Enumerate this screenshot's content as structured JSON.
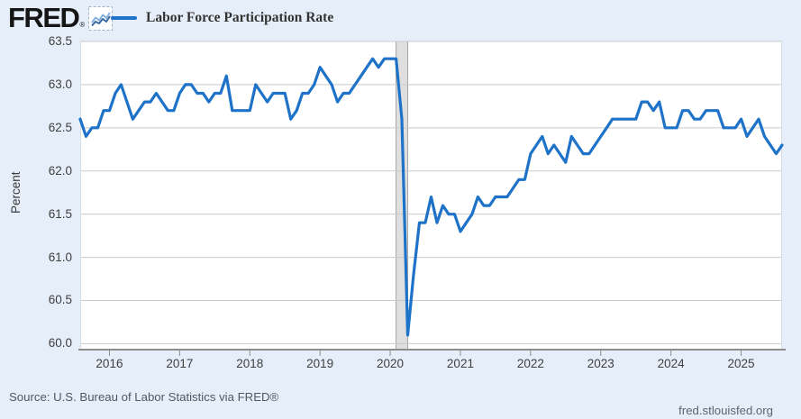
{
  "header": {
    "logo_text": "FRED",
    "logo_registered_mark": "®",
    "legend": {
      "series_label": "Labor Force Participation Rate"
    }
  },
  "chart_data": {
    "type": "line",
    "title": "Labor Force Participation Rate",
    "ylabel": "Percent",
    "frequency": "monthly",
    "x_start": "2015-08",
    "x_end": "2025-08",
    "ylim": [
      60.0,
      63.5
    ],
    "y_ticks": [
      63.5,
      63.0,
      62.5,
      62.0,
      61.5,
      61.0,
      60.5,
      60.0
    ],
    "x_tick_years": [
      "2016",
      "2017",
      "2018",
      "2019",
      "2020",
      "2021",
      "2022",
      "2023",
      "2024",
      "2025"
    ],
    "grid": true,
    "legend_position": "top-left",
    "line_color": "#1e73c8",
    "recession_band": {
      "from": "2020-02",
      "to": "2020-04",
      "fill": "#dfdfdf",
      "edge": "#a6a6a6"
    },
    "series": [
      {
        "name": "Labor Force Participation Rate",
        "units": "Percent",
        "values": [
          62.6,
          62.4,
          62.5,
          62.5,
          62.7,
          62.7,
          62.9,
          63.0,
          62.8,
          62.6,
          62.7,
          62.8,
          62.8,
          62.9,
          62.8,
          62.7,
          62.7,
          62.9,
          63.0,
          63.0,
          62.9,
          62.9,
          62.8,
          62.9,
          62.9,
          63.1,
          62.7,
          62.7,
          62.7,
          62.7,
          63.0,
          62.9,
          62.8,
          62.9,
          62.9,
          62.9,
          62.6,
          62.7,
          62.9,
          62.9,
          63.0,
          63.2,
          63.1,
          63.0,
          62.8,
          62.9,
          62.9,
          63.0,
          63.1,
          63.2,
          63.3,
          63.2,
          63.3,
          63.3,
          63.3,
          62.6,
          60.1,
          60.8,
          61.4,
          61.4,
          61.7,
          61.4,
          61.6,
          61.5,
          61.5,
          61.3,
          61.4,
          61.5,
          61.7,
          61.6,
          61.6,
          61.7,
          61.7,
          61.7,
          61.8,
          61.9,
          61.9,
          62.2,
          62.3,
          62.4,
          62.2,
          62.3,
          62.2,
          62.1,
          62.4,
          62.3,
          62.2,
          62.2,
          62.3,
          62.4,
          62.5,
          62.6,
          62.6,
          62.6,
          62.6,
          62.6,
          62.8,
          62.8,
          62.7,
          62.8,
          62.5,
          62.5,
          62.5,
          62.7,
          62.7,
          62.6,
          62.6,
          62.7,
          62.7,
          62.7,
          62.5,
          62.5,
          62.5,
          62.6,
          62.4,
          62.5,
          62.6,
          62.4,
          62.3,
          62.2,
          62.3
        ]
      }
    ]
  },
  "footer": {
    "source": "Source: U.S. Bureau of Labor Statistics via FRED®",
    "site": "fred.stlouisfed.org"
  }
}
